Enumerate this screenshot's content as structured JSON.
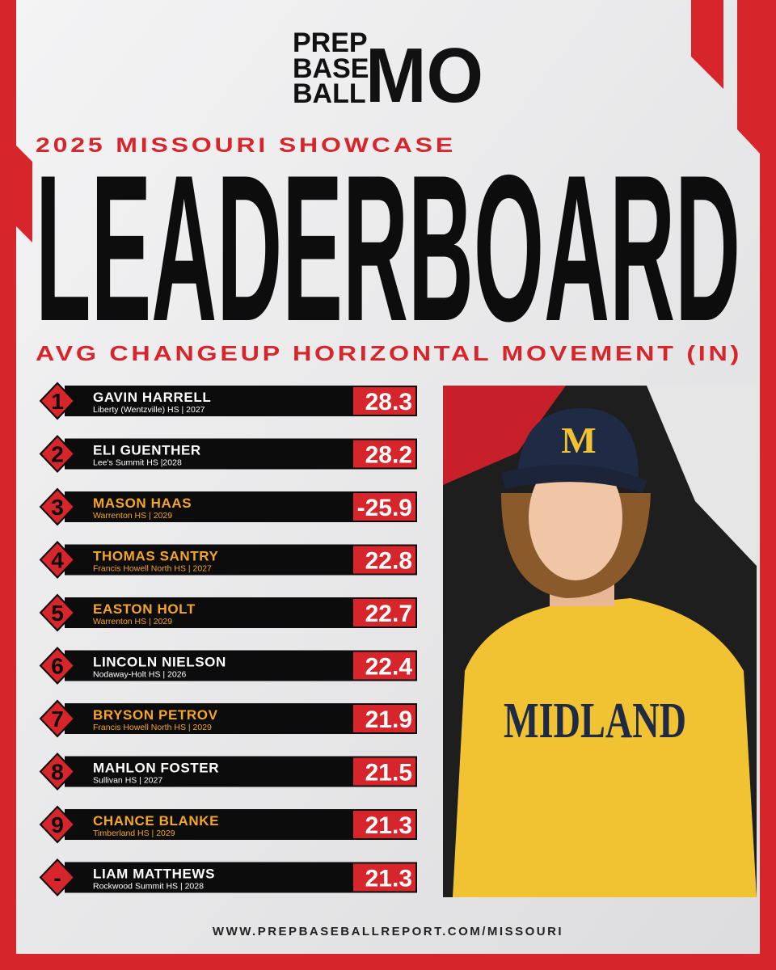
{
  "logo": {
    "line1": "PREP",
    "line2": "BASE",
    "line3": "BALL",
    "mark": "MO"
  },
  "header": {
    "event": "2025 MISSOURI SHOWCASE",
    "title": "LEADERBOARD",
    "metric": "AVG CHANGEUP HORIZONTAL MOVEMENT (IN)"
  },
  "rows": [
    {
      "rank": "1",
      "name": "GAVIN HARRELL",
      "school": "Liberty (Wentzville) HS | 2027",
      "value": "28.3",
      "name_color": "#ffffff"
    },
    {
      "rank": "2",
      "name": "ELI GUENTHER",
      "school": "Lee's Summit HS |2028",
      "value": "28.2",
      "name_color": "#ffffff"
    },
    {
      "rank": "3",
      "name": "MASON HAAS",
      "school": "Warrenton HS | 2029",
      "value": "-25.9",
      "name_color": "#f5a623"
    },
    {
      "rank": "4",
      "name": "THOMAS SANTRY",
      "school": "Francis Howell North HS | 2027",
      "value": "22.8",
      "name_color": "#f5a623"
    },
    {
      "rank": "5",
      "name": "EASTON HOLT",
      "school": "Warrenton HS | 2029",
      "value": "22.7",
      "name_color": "#f5a623"
    },
    {
      "rank": "6",
      "name": "LINCOLN NIELSON",
      "school": "Nodaway-Holt HS | 2026",
      "value": "22.4",
      "name_color": "#ffffff"
    },
    {
      "rank": "7",
      "name": "BRYSON PETROV",
      "school": "Francis Howell North HS | 2029",
      "value": "21.9",
      "name_color": "#f5a623"
    },
    {
      "rank": "8",
      "name": "MAHLON FOSTER",
      "school": "Sullivan HS | 2027",
      "value": "21.5",
      "name_color": "#ffffff"
    },
    {
      "rank": "9",
      "name": "CHANCE BLANKE",
      "school": "Timberland HS | 2029",
      "value": "21.3",
      "name_color": "#f5a623"
    },
    {
      "rank": "-",
      "name": "LIAM MATTHEWS",
      "school": "Rockwood Summit HS | 2028",
      "value": "21.3",
      "name_color": "#ffffff"
    }
  ],
  "photo": {
    "cap_letter": "M",
    "jersey_text": "MIDLAND"
  },
  "footer": {
    "url": "WWW.PREPBASEBALLREPORT.COM/MISSOURI"
  }
}
